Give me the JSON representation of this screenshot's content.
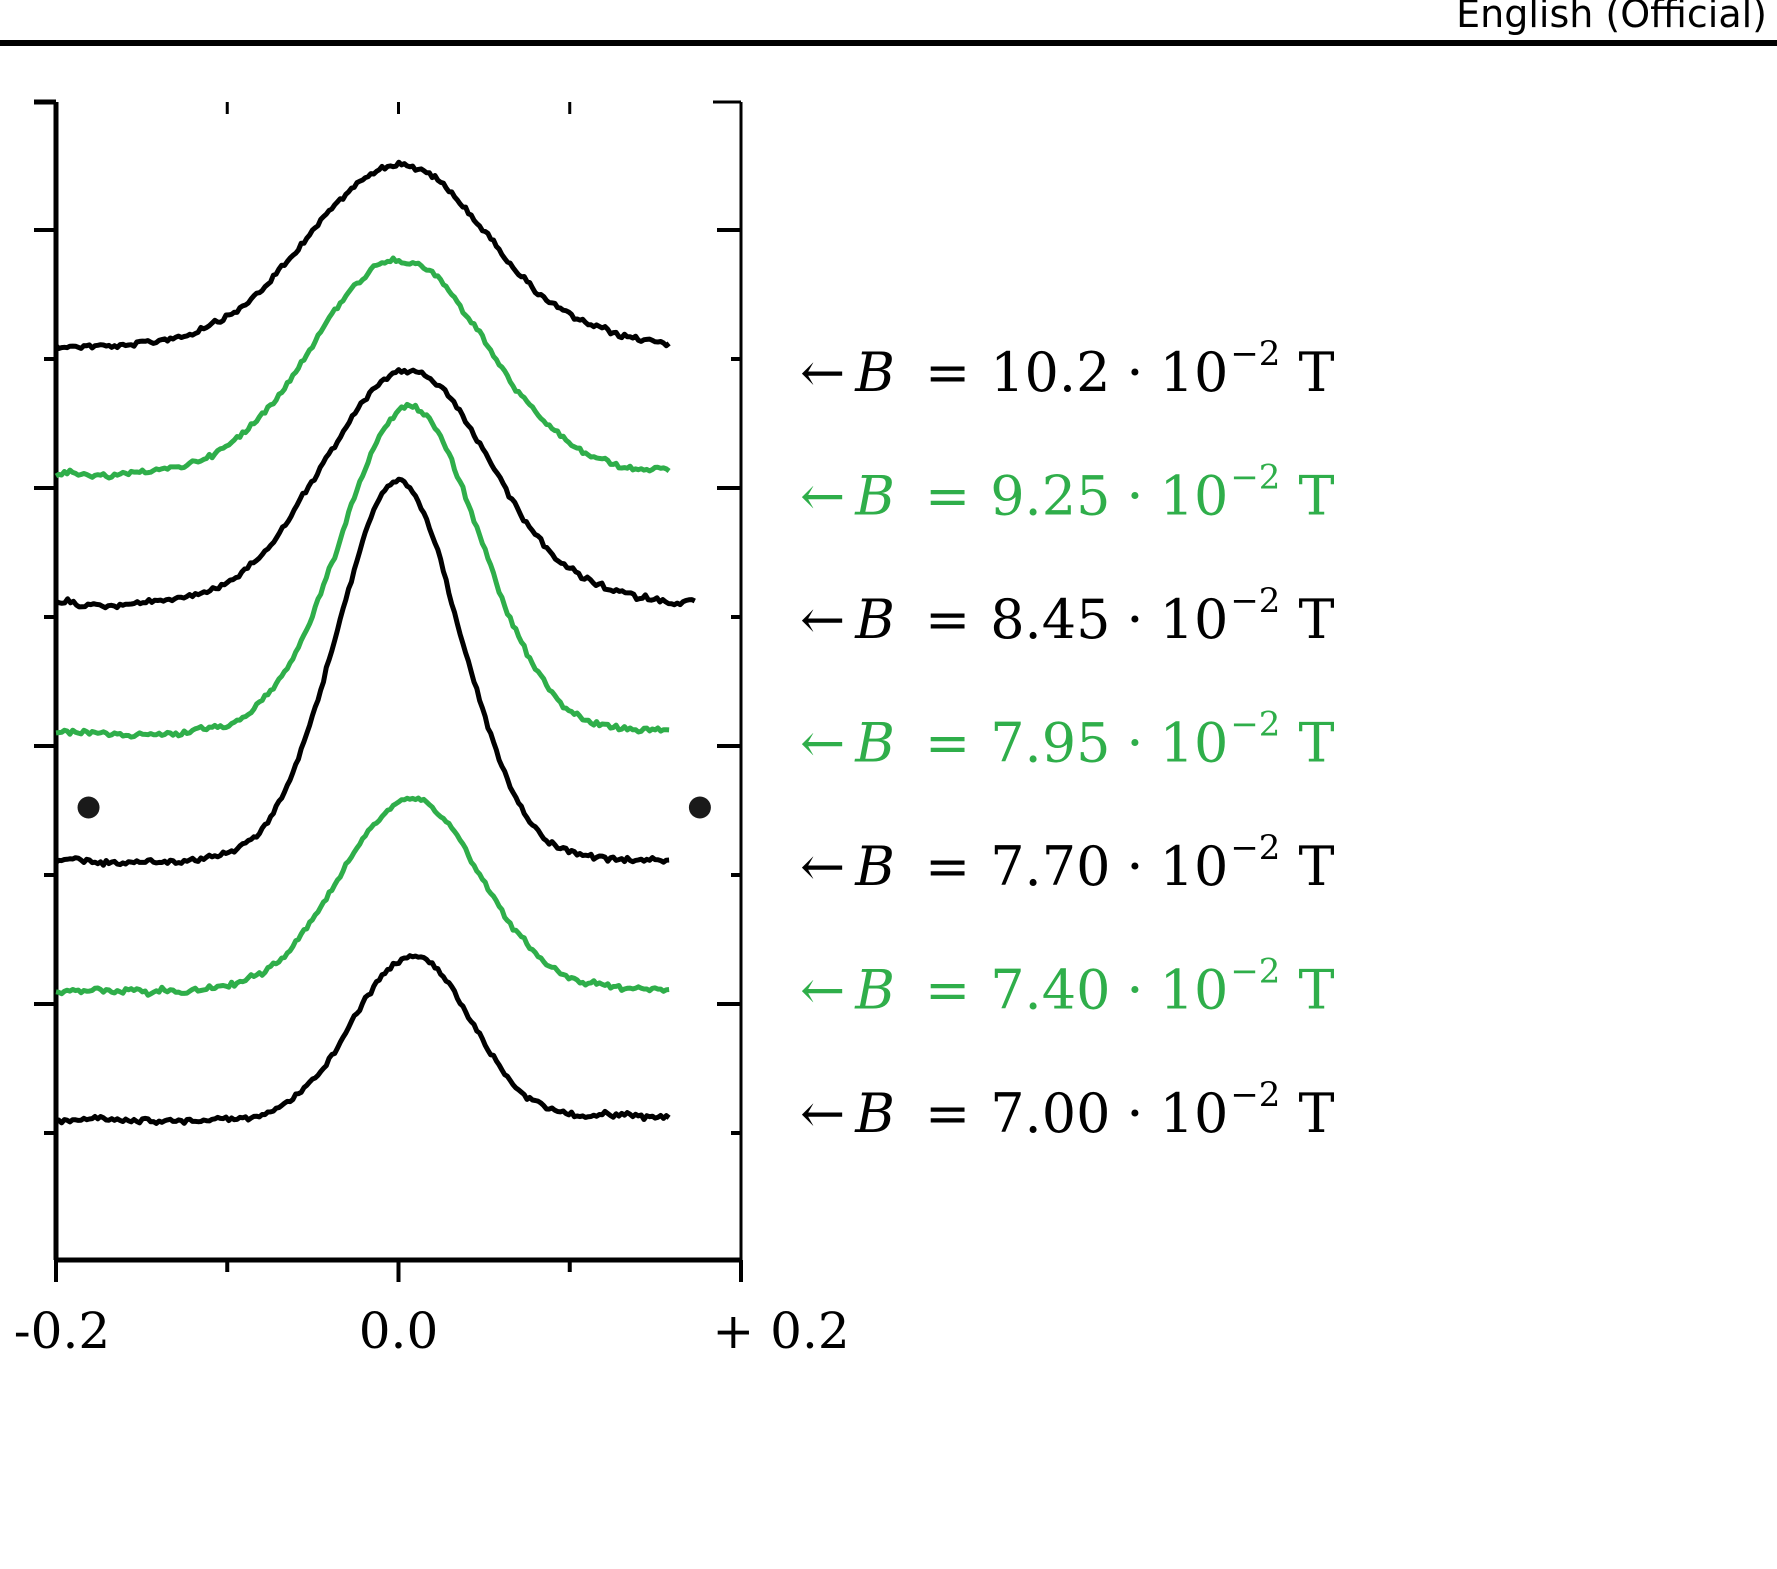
{
  "header": {
    "label": "English (Official)"
  },
  "colors": {
    "black": "#000000",
    "green": "#2fae4a"
  },
  "chart_data": {
    "type": "line",
    "title": "",
    "xlabel": "",
    "ylabel": "",
    "xlim": [
      -0.2,
      0.2
    ],
    "x_ticks": [
      {
        "value": -0.2,
        "label": "-0.2"
      },
      {
        "value": 0.0,
        "label": "0.0"
      },
      {
        "value": 0.2,
        "label": "+ 0.2"
      }
    ],
    "grid": false,
    "legend_position": "right",
    "series": [
      {
        "color": "#000000",
        "arrow": "←",
        "symbol": "B",
        "eq": "=",
        "value": "10.2",
        "dot": "·",
        "base": "10",
        "exp": "−2",
        "unit": "T",
        "baseline": 0.0,
        "peak": 0.82,
        "width": 0.052,
        "peak_x": 0.0
      },
      {
        "color": "#2fae4a",
        "arrow": "←",
        "symbol": "B",
        "eq": "=",
        "value": "9.25",
        "dot": "·",
        "base": "10",
        "exp": "−2",
        "unit": "T",
        "baseline": 0.0,
        "peak": 0.98,
        "width": 0.05,
        "peak_x": 0.0
      },
      {
        "color": "#000000",
        "arrow": "←",
        "symbol": "B",
        "eq": "=",
        "value": "8.45",
        "dot": "·",
        "base": "10",
        "exp": "−2",
        "unit": "T",
        "baseline": 0.0,
        "peak": 1.06,
        "width": 0.048,
        "peak_x": 0.005
      },
      {
        "color": "#2fae4a",
        "arrow": "←",
        "symbol": "B",
        "eq": "=",
        "value": "7.95",
        "dot": "·",
        "base": "10",
        "exp": "−2",
        "unit": "T",
        "baseline": 0.0,
        "peak": 1.48,
        "width": 0.04,
        "peak_x": 0.007
      },
      {
        "color": "#000000",
        "arrow": "←",
        "symbol": "B",
        "eq": "=",
        "value": "7.70",
        "dot": "·",
        "base": "10",
        "exp": "−2",
        "unit": "T",
        "baseline": 0.0,
        "peak": 1.72,
        "width": 0.036,
        "peak_x": 0.0
      },
      {
        "color": "#2fae4a",
        "arrow": "←",
        "symbol": "B",
        "eq": "=",
        "value": "7.40",
        "dot": "·",
        "base": "10",
        "exp": "−2",
        "unit": "T",
        "baseline": 0.0,
        "peak": 0.88,
        "width": 0.04,
        "peak_x": 0.007
      },
      {
        "color": "#000000",
        "arrow": "←",
        "symbol": "B",
        "eq": "=",
        "value": "7.00",
        "dot": "·",
        "base": "10",
        "exp": "−2",
        "unit": "T",
        "baseline": 0.0,
        "peak": 0.74,
        "width": 0.034,
        "peak_x": 0.008
      }
    ],
    "markers": [
      {
        "x": -0.181,
        "y_level": 4.5
      },
      {
        "x": 0.176,
        "y_level": 4.5
      }
    ]
  }
}
